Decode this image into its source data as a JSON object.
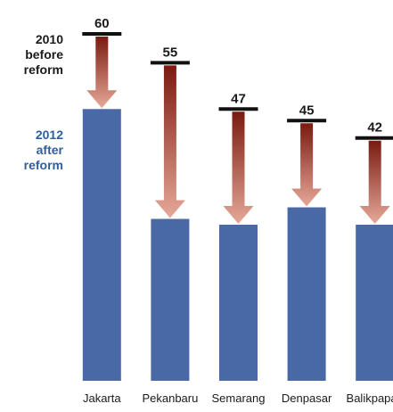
{
  "chart_data": {
    "type": "bar",
    "categories": [
      "Jakarta",
      "Pekanbaru",
      "Semarang",
      "Denpasar",
      "Balikpapan"
    ],
    "series": [
      {
        "name": "2010 before reform",
        "values": [
          60,
          55,
          47,
          45,
          42
        ]
      },
      {
        "name": "2012 after reform",
        "values": [
          47,
          28,
          27,
          30,
          27
        ]
      }
    ],
    "legend": {
      "before": [
        "2010",
        "before",
        "reform"
      ],
      "after": [
        "2012",
        "after",
        "reform"
      ]
    },
    "ylim": [
      0,
      60
    ],
    "grid": false,
    "colors": {
      "bar": "#4868a6",
      "marker": "#111111",
      "arrow_top": "#7a1a10",
      "arrow_bottom": "#e6a898",
      "after_label": "#2f5e9c"
    }
  }
}
